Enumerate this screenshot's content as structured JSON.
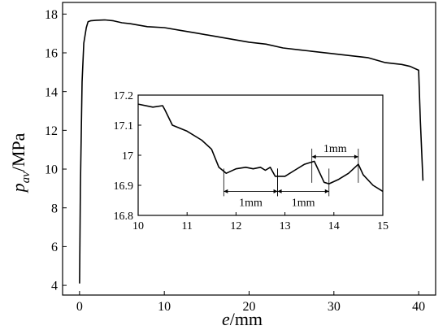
{
  "chart_data": [
    {
      "type": "line",
      "name_main": "main",
      "xlabel_var": "e",
      "xlabel_unit": "/mm",
      "ylabel_var": "p",
      "ylabel_sub": "av",
      "ylabel_unit": "/MPa",
      "xlim": [
        -2,
        42
      ],
      "ylim": [
        3.5,
        18.6
      ],
      "xticks": [
        0,
        10,
        20,
        30,
        40
      ],
      "yticks": [
        4,
        6,
        8,
        10,
        12,
        14,
        16,
        18
      ],
      "x": [
        0,
        0.1,
        0.3,
        0.5,
        0.8,
        1,
        1.3,
        2,
        3,
        4,
        5,
        6,
        8,
        10,
        12,
        14,
        16,
        18,
        20,
        22,
        24,
        26,
        28,
        30,
        32,
        34,
        36,
        38,
        39,
        40,
        40.2,
        40.5
      ],
      "y": [
        4.1,
        9,
        14.5,
        16.5,
        17.3,
        17.6,
        17.65,
        17.68,
        17.7,
        17.65,
        17.55,
        17.5,
        17.35,
        17.3,
        17.15,
        17.0,
        16.85,
        16.7,
        16.55,
        16.45,
        16.25,
        16.15,
        16.05,
        15.95,
        15.85,
        15.75,
        15.5,
        15.4,
        15.3,
        15.1,
        12.5,
        9.4
      ]
    },
    {
      "type": "line",
      "name_inset": "inset",
      "xlim": [
        10,
        15
      ],
      "ylim": [
        16.8,
        17.2
      ],
      "xticks": [
        10,
        11,
        12,
        13,
        14,
        15
      ],
      "yticks": [
        16.8,
        16.9,
        17.0,
        17.1,
        17.2
      ],
      "x": [
        10,
        10.3,
        10.5,
        10.55,
        10.7,
        11,
        11.3,
        11.5,
        11.65,
        11.8,
        12,
        12.2,
        12.35,
        12.5,
        12.6,
        12.7,
        12.8,
        13,
        13.2,
        13.4,
        13.6,
        13.8,
        13.9,
        14.1,
        14.3,
        14.5,
        14.6,
        14.8,
        15
      ],
      "y": [
        17.17,
        17.16,
        17.165,
        17.15,
        17.1,
        17.08,
        17.05,
        17.02,
        16.96,
        16.94,
        16.955,
        16.96,
        16.955,
        16.96,
        16.95,
        16.96,
        16.93,
        16.93,
        16.95,
        16.97,
        16.98,
        16.91,
        16.905,
        16.92,
        16.94,
        16.97,
        16.935,
        16.9,
        16.88
      ],
      "annotations": [
        {
          "label": "1mm",
          "x1": 11.75,
          "x2": 12.85,
          "y": 16.88,
          "position": "below"
        },
        {
          "label": "1mm",
          "x1": 12.85,
          "x2": 13.9,
          "y": 16.88,
          "position": "below"
        },
        {
          "label": "1mm",
          "x1": 13.55,
          "x2": 14.5,
          "y": 16.995,
          "position": "above"
        }
      ]
    }
  ]
}
